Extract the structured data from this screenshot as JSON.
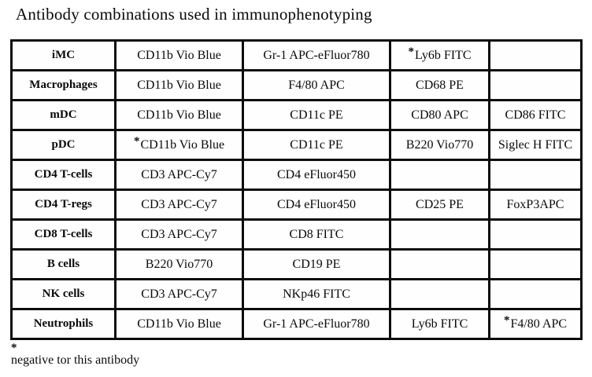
{
  "title": "Antibody combinations used in immunophenotyping",
  "table": {
    "column_count": 5,
    "rows": [
      {
        "label": "iMC",
        "cells": [
          "CD11b Vio Blue",
          "Gr-1 APC-eFluor780",
          "*Ly6b FITC",
          ""
        ]
      },
      {
        "label": "Macrophages",
        "cells": [
          "CD11b Vio Blue",
          "F4/80 APC",
          "CD68 PE",
          ""
        ]
      },
      {
        "label": "mDC",
        "cells": [
          "CD11b Vio Blue",
          "CD11c PE",
          "CD80 APC",
          "CD86 FITC"
        ]
      },
      {
        "label": "pDC",
        "cells": [
          "*CD11b Vio Blue",
          "CD11c PE",
          "B220 Vio770",
          "Siglec H FITC"
        ]
      },
      {
        "label": "CD4 T-cells",
        "cells": [
          "CD3 APC-Cy7",
          "CD4 eFluor450",
          "",
          ""
        ]
      },
      {
        "label": "CD4 T-regs",
        "cells": [
          "CD3 APC-Cy7",
          "CD4 eFluor450",
          "CD25 PE",
          "FoxP3APC"
        ]
      },
      {
        "label": "CD8 T-cells",
        "cells": [
          "CD3 APC-Cy7",
          "CD8 FITC",
          "",
          ""
        ]
      },
      {
        "label": "B cells",
        "cells": [
          "B220 Vio770",
          "CD19 PE",
          "",
          ""
        ]
      },
      {
        "label": "NK cells",
        "cells": [
          "CD3 APC-Cy7",
          "NKp46 FITC",
          "",
          ""
        ]
      },
      {
        "label": "Neutrophils",
        "cells": [
          "CD11b Vio Blue",
          "Gr-1 APC-eFluor780",
          "Ly6b FITC",
          "*F4/80 APC"
        ]
      }
    ]
  },
  "footnote": {
    "marker": "*",
    "text": "negative tor this antibody"
  },
  "colors": {
    "background": "#ffffff",
    "border": "#0d0d0d",
    "text": "#0a0a0a"
  }
}
